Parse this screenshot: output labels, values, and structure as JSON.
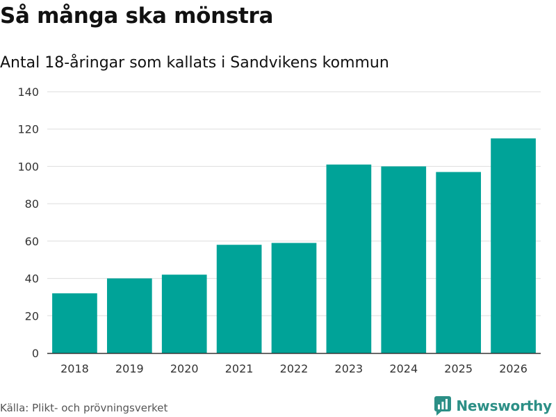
{
  "header": {
    "title": "Så många ska mönstra",
    "subtitle": "Antal 18-åringar som kallats i Sandvikens kommun"
  },
  "footer": {
    "source": "Källa: Plikt- och prövningsverket",
    "brand": "Newsworthy"
  },
  "colors": {
    "bar": "#00a398",
    "grid": "#dddddd",
    "axis": "#333333",
    "brand": "#2c8f86"
  },
  "chart_data": {
    "type": "bar",
    "title": "Så många ska mönstra",
    "subtitle": "Antal 18-åringar som kallats i Sandvikens kommun",
    "xlabel": "",
    "ylabel": "",
    "categories": [
      "2018",
      "2019",
      "2020",
      "2021",
      "2022",
      "2023",
      "2024",
      "2025",
      "2026"
    ],
    "values": [
      32,
      40,
      42,
      58,
      59,
      101,
      100,
      97,
      115
    ],
    "ylim": [
      0,
      140
    ],
    "yticks": [
      "0",
      "20",
      "40",
      "60",
      "80",
      "100",
      "120",
      "140"
    ],
    "grid": true,
    "legend": "none"
  }
}
